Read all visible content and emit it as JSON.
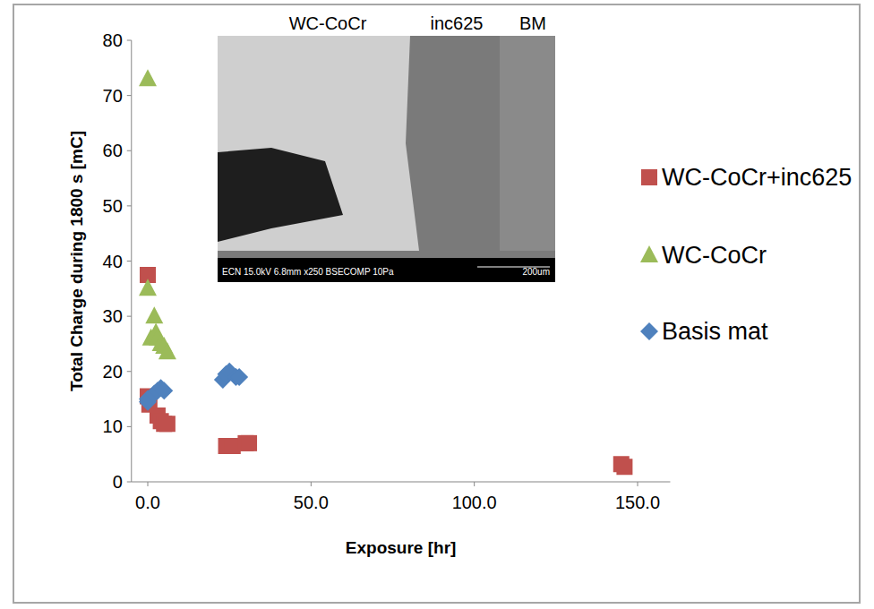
{
  "chart_data": {
    "type": "scatter",
    "x_label": "Exposure [hr]",
    "y_label": "Total Charge during 1800 s [mC]",
    "xlim": [
      -5,
      160
    ],
    "xticks": [
      {
        "value": 0,
        "label": "0.0"
      },
      {
        "value": 50,
        "label": "50.0"
      },
      {
        "value": 100,
        "label": "100.0"
      },
      {
        "value": 150,
        "label": "150.0"
      }
    ],
    "ylim": [
      0,
      80
    ],
    "yticks": [
      0,
      10,
      20,
      30,
      40,
      50,
      60,
      70,
      80
    ],
    "grid": false,
    "legend": "right",
    "series": [
      {
        "name": "WC-CoCr+inc625",
        "color": "#c0504d",
        "marker": "square",
        "x": [
          0,
          0,
          0.5,
          3,
          4,
          5,
          6,
          24,
          26,
          30,
          31,
          145,
          146
        ],
        "values": [
          37.5,
          15.5,
          14,
          12,
          11,
          10.5,
          10.5,
          6.5,
          6.5,
          7,
          7,
          3.2,
          2.7
        ]
      },
      {
        "name": "WC-CoCr",
        "color": "#9bbb59",
        "marker": "triangle",
        "x": [
          0,
          0,
          1,
          2,
          2.5,
          3,
          4,
          5,
          6
        ],
        "values": [
          73,
          35,
          26,
          30,
          27,
          26,
          25,
          24.5,
          23.5
        ]
      },
      {
        "name": "Basis mat",
        "color": "#4f81bd",
        "marker": "diamond",
        "x": [
          0,
          0,
          2,
          3,
          4,
          5,
          23,
          24,
          25,
          27,
          28
        ],
        "values": [
          15,
          14.5,
          16,
          16.5,
          17,
          16.5,
          18.5,
          19.5,
          20,
          19,
          19
        ]
      }
    ],
    "annotations": [
      "WC-CoCr",
      "inc625",
      "BM",
      "ECN 15.0kV 6.8mm x250 BSECOMP 10Pa",
      "200um"
    ]
  }
}
